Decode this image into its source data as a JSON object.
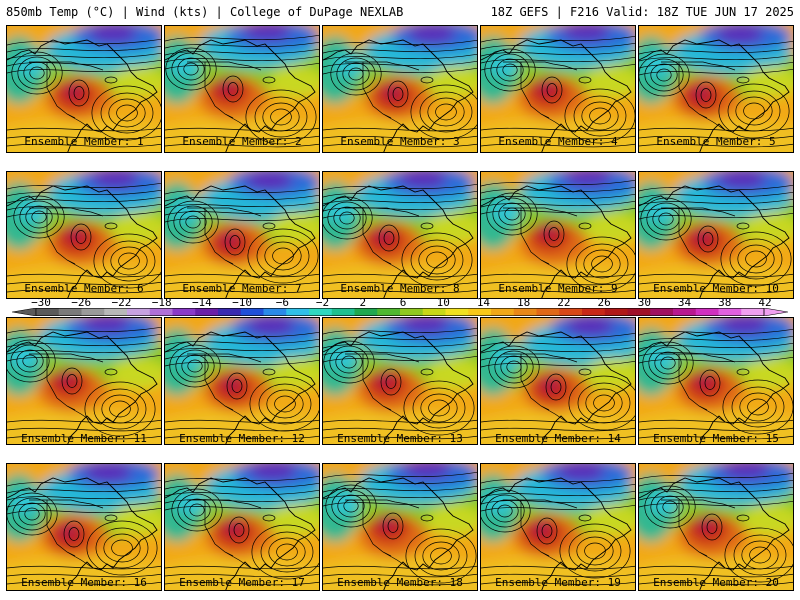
{
  "header": {
    "left": "850mb Temp (°C) | Wind (kts) | College of DuPage NEXLAB",
    "right": "18Z GEFS | F216 Valid: 18Z TUE JUN 17 2025"
  },
  "panel_label_prefix": "Ensemble Member:",
  "members": [
    {
      "label": "Ensemble Member: 1",
      "number": 1
    },
    {
      "label": "Ensemble Member: 2",
      "number": 2
    },
    {
      "label": "Ensemble Member: 3",
      "number": 3
    },
    {
      "label": "Ensemble Member: 4",
      "number": 4
    },
    {
      "label": "Ensemble Member: 5",
      "number": 5
    },
    {
      "label": "Ensemble Member: 6",
      "number": 6
    },
    {
      "label": "Ensemble Member: 7",
      "number": 7
    },
    {
      "label": "Ensemble Member: 8",
      "number": 8
    },
    {
      "label": "Ensemble Member: 9",
      "number": 9
    },
    {
      "label": "Ensemble Member: 10",
      "number": 10
    },
    {
      "label": "Ensemble Member: 11",
      "number": 11
    },
    {
      "label": "Ensemble Member: 12",
      "number": 12
    },
    {
      "label": "Ensemble Member: 13",
      "number": 13
    },
    {
      "label": "Ensemble Member: 14",
      "number": 14
    },
    {
      "label": "Ensemble Member: 15",
      "number": 15
    },
    {
      "label": "Ensemble Member: 16",
      "number": 16
    },
    {
      "label": "Ensemble Member: 17",
      "number": 17
    },
    {
      "label": "Ensemble Member: 18",
      "number": 18
    },
    {
      "label": "Ensemble Member: 19",
      "number": 19
    },
    {
      "label": "Ensemble Member: 20",
      "number": 20
    }
  ],
  "colorbar": {
    "tick_labels": [
      "−30",
      "−26",
      "−22",
      "−18",
      "−14",
      "−10",
      "−6",
      "−2",
      "2",
      "6",
      "10",
      "14",
      "18",
      "22",
      "26",
      "30",
      "34",
      "38",
      "42"
    ],
    "colors": [
      "#5a5a5a",
      "#7a7a7a",
      "#9a9a9a",
      "#b8b8b8",
      "#c7a2e0",
      "#b070d8",
      "#8a3ac8",
      "#6a20a8",
      "#3a2ab0",
      "#2050d8",
      "#2a8ae8",
      "#30c0e8",
      "#30d8c0",
      "#20c090",
      "#20a850",
      "#50b830",
      "#90c820",
      "#c8d818",
      "#f0e020",
      "#f8c818",
      "#f0a818",
      "#e88818",
      "#e06818",
      "#d84818",
      "#c82818",
      "#b01818",
      "#a01028",
      "#a01060",
      "#b81890",
      "#d030c0",
      "#e060e0",
      "#f0a0f0"
    ]
  }
}
